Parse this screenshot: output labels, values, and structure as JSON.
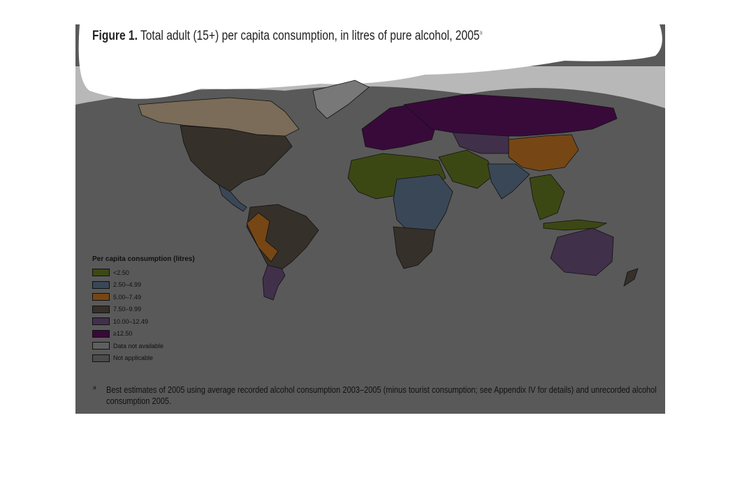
{
  "title": {
    "label": "Figure 1.",
    "text": "Total adult (15+) per capita consumption, in litres of pure alcohol, 2005",
    "note": "a"
  },
  "legend": {
    "title": "Per capita consumption (litres)",
    "items": [
      {
        "label": "<2.50",
        "color": "#3c4814"
      },
      {
        "label": "2.50–4.99",
        "color": "#3a4756"
      },
      {
        "label": "5.00–7.49",
        "color": "#764714"
      },
      {
        "label": "7.50–9.99",
        "color": "#36302a"
      },
      {
        "label": "10.00–12.49",
        "color": "#41304a"
      },
      {
        "label": "≥12.50",
        "color": "#380a3a"
      },
      {
        "label": "Data not available",
        "color": "#5f5f5f"
      },
      {
        "label": "Not applicable",
        "color": "#4b4b4b"
      }
    ]
  },
  "footnote": {
    "marker": "a",
    "text": "Best estimates of 2005 using average recorded alcohol consumption 2003–2005 (minus tourist consumption; see Appendix IV for details) and unrecorded alcohol consumption 2005."
  }
}
